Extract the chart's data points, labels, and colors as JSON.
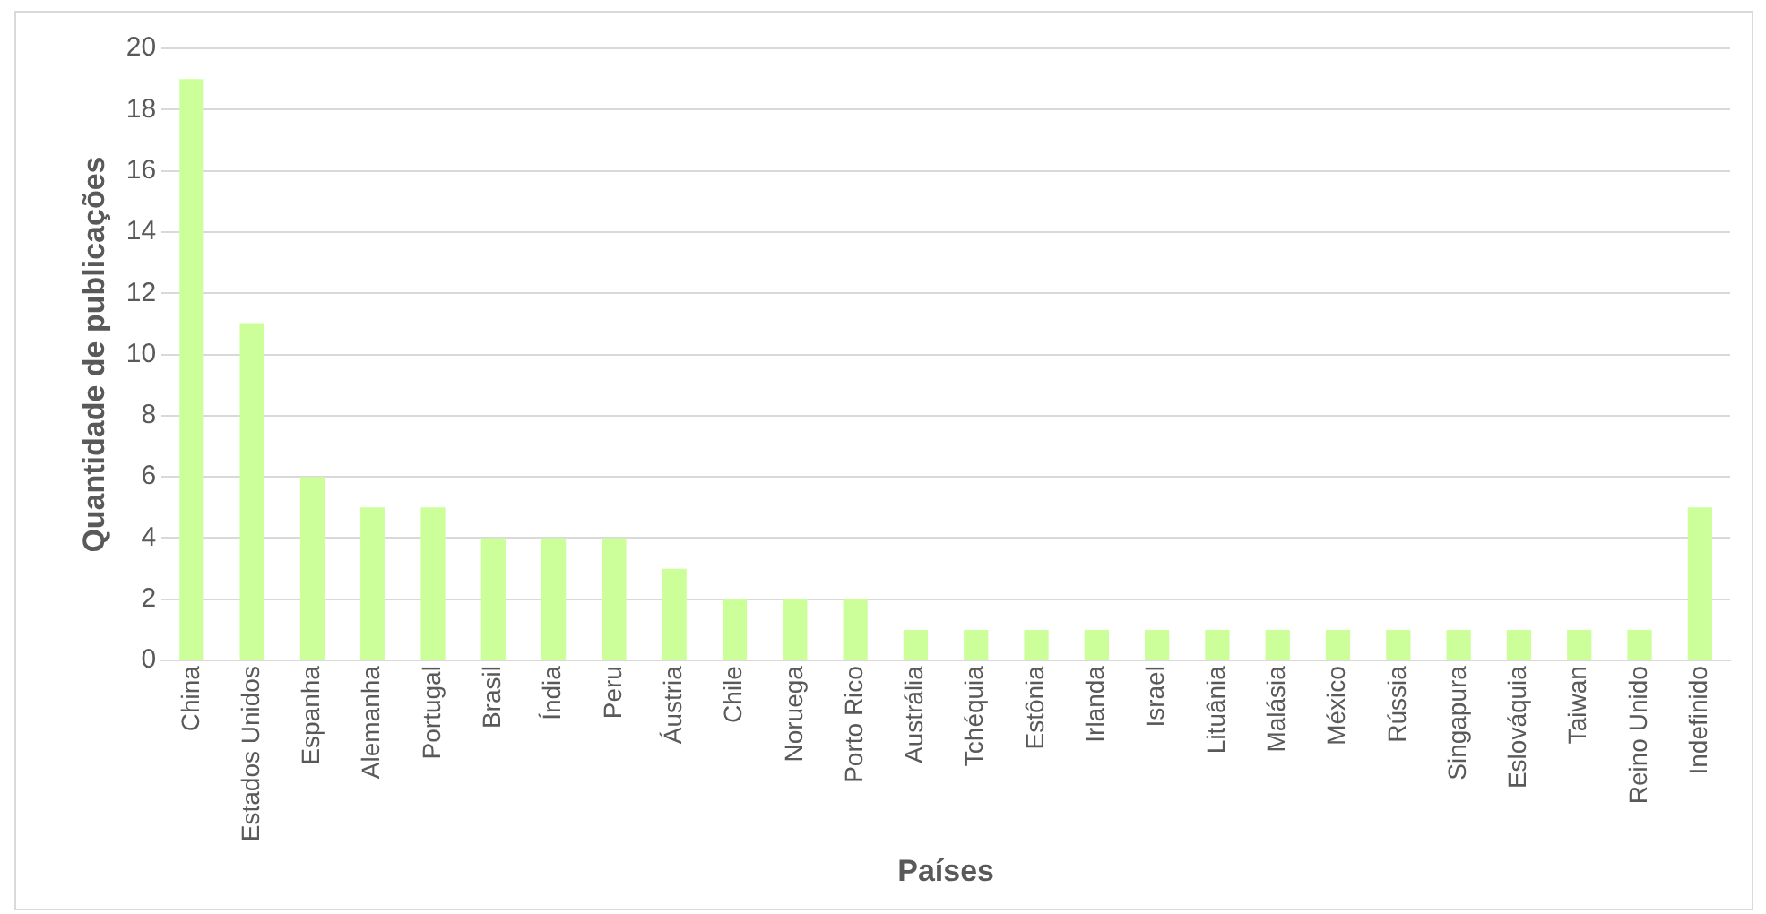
{
  "chart_data": {
    "type": "bar",
    "xlabel": "Países",
    "ylabel": "Quantidade de publicações",
    "categories": [
      "China",
      "Estados Unidos",
      "Espanha",
      "Alemanha",
      "Portugal",
      "Brasil",
      "Índia",
      "Peru",
      "Áustria",
      "Chile",
      "Noruega",
      "Porto Rico",
      "Austrália",
      "Tchéquia",
      "Estônia",
      "Irlanda",
      "Israel",
      "Lituânia",
      "Malásia",
      "México",
      "Rússia",
      "Singapura",
      "Eslováquia",
      "Taiwan",
      "Reino Unido",
      "Indefinido"
    ],
    "values": [
      19,
      11,
      6,
      5,
      5,
      4,
      4,
      4,
      3,
      2,
      2,
      2,
      1,
      1,
      1,
      1,
      1,
      1,
      1,
      1,
      1,
      1,
      1,
      1,
      1,
      5
    ],
    "color": "#ccff99",
    "ylim": [
      0,
      20
    ],
    "yticks": [
      0,
      2,
      4,
      6,
      8,
      10,
      12,
      14,
      16,
      18,
      20
    ],
    "grid": "y",
    "legend": false
  }
}
